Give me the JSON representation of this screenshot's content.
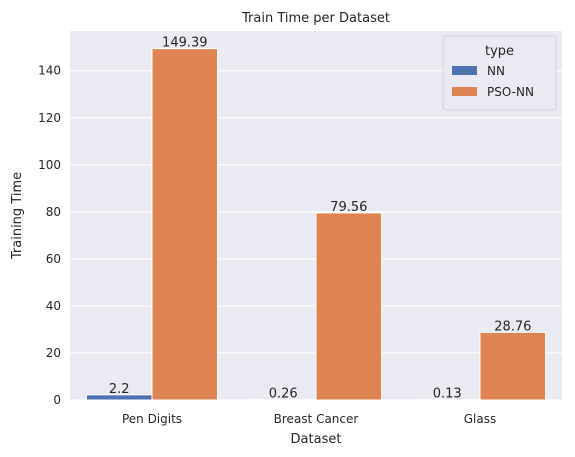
{
  "chart_data": {
    "type": "bar",
    "title": "Train Time per Dataset",
    "xlabel": "Dataset",
    "ylabel": "Training Time",
    "categories": [
      "Pen Digits",
      "Breast Cancer",
      "Glass"
    ],
    "series": [
      {
        "name": "NN",
        "values": [
          2.2,
          0.26,
          0.13
        ],
        "labels": [
          "2.2",
          "0.26",
          "0.13"
        ],
        "color": "#4c72b0"
      },
      {
        "name": "PSO-NN",
        "values": [
          149.39,
          79.56,
          28.76
        ],
        "labels": [
          "149.39",
          "79.56",
          "28.76"
        ],
        "color": "#dd8452"
      }
    ],
    "ylim": [
      0,
      156.9
    ],
    "yticks": [
      0,
      20,
      40,
      60,
      80,
      100,
      120,
      140
    ],
    "grid": true,
    "legend": {
      "title": "type",
      "position": "top-right"
    },
    "background": "#eaeaf2"
  }
}
